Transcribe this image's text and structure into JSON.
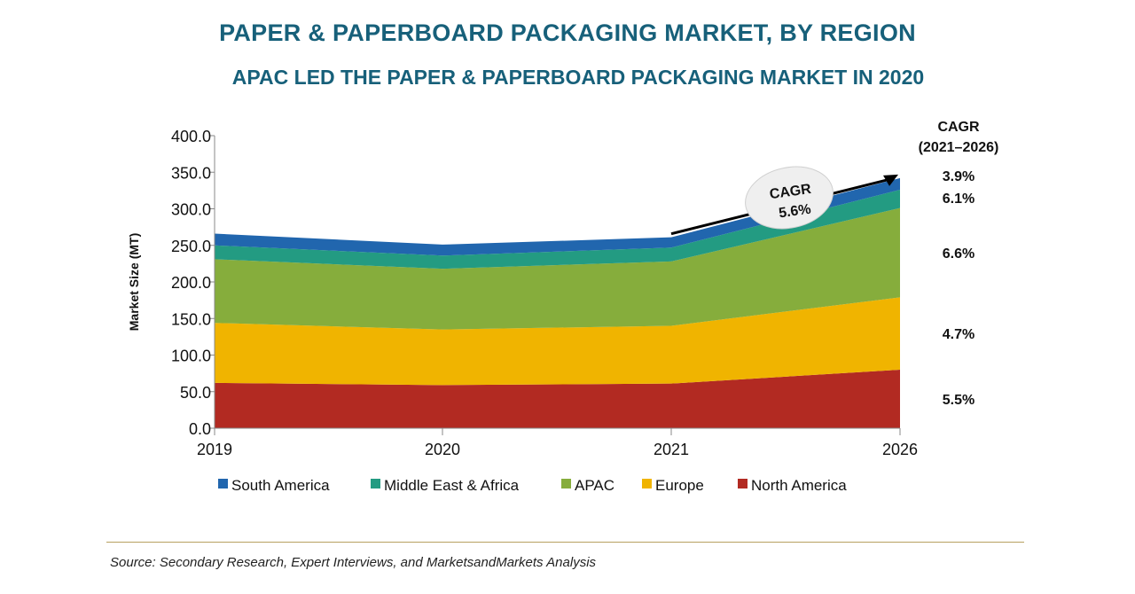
{
  "chart_data": {
    "type": "area",
    "stacked": true,
    "title": "PAPER & PAPERBOARD PACKAGING MARKET, BY REGION",
    "subtitle": "APAC LED THE PAPER & PAPERBOARD PACKAGING MARKET IN 2020",
    "x": [
      "2019",
      "2020",
      "2021",
      "2026"
    ],
    "ylabel": "Market Size (MT)",
    "ylim": [
      0,
      400
    ],
    "yticks": [
      "0.0",
      "50.0",
      "100.0",
      "150.0",
      "200.0",
      "250.0",
      "300.0",
      "350.0",
      "400.0"
    ],
    "series": [
      {
        "name": "North America",
        "color": "#b22a22",
        "values": [
          62,
          59,
          61,
          80
        ]
      },
      {
        "name": "Europe",
        "color": "#f0b400",
        "values": [
          82,
          76,
          79,
          99
        ]
      },
      {
        "name": "APAC",
        "color": "#86ad3c",
        "values": [
          87,
          83,
          88,
          122
        ]
      },
      {
        "name": "Middle East & Africa",
        "color": "#239b82",
        "values": [
          19,
          18,
          19,
          25
        ]
      },
      {
        "name": "South America",
        "color": "#2166ae",
        "values": [
          16,
          15,
          14,
          16
        ]
      }
    ],
    "legend_order": [
      "South America",
      "Middle East & Africa",
      "APAC",
      "Europe",
      "North America"
    ],
    "cagr_header": "CAGR",
    "cagr_period": "(2021–2026)",
    "cagr_values": [
      {
        "series": "South America",
        "value": "3.9%"
      },
      {
        "series": "Middle East & Africa",
        "value": "6.1%"
      },
      {
        "series": "APAC",
        "value": "6.6%"
      },
      {
        "series": "Europe",
        "value": "4.7%"
      },
      {
        "series": "North America",
        "value": "5.5%"
      }
    ],
    "callout": {
      "label": "CAGR",
      "value": "5.6%"
    }
  },
  "source": "Source: Secondary Research, Expert Interviews, and MarketsandMarkets Analysis"
}
